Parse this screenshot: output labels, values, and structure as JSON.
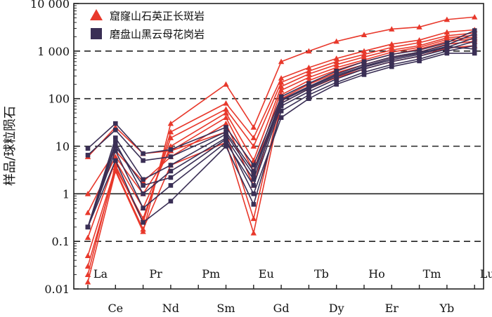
{
  "chart_data": {
    "type": "line",
    "ylabel": "样品/球粒陨石",
    "y_scale": "log",
    "ylim": [
      0.01,
      10000
    ],
    "y_ticks": [
      {
        "value": 0.01,
        "label": "0.01"
      },
      {
        "value": 0.1,
        "label": "0.1"
      },
      {
        "value": 1,
        "label": "1"
      },
      {
        "value": 10,
        "label": "10"
      },
      {
        "value": 100,
        "label": "100"
      },
      {
        "value": 1000,
        "label": "1 000"
      },
      {
        "value": 10000,
        "label": "10 000"
      }
    ],
    "dashed_gridlines": [
      0.1,
      10,
      100,
      1000
    ],
    "solid_gridlines": [
      1
    ],
    "categories": [
      "La",
      "Ce",
      "Pr",
      "Nd",
      "Pm",
      "Sm",
      "Eu",
      "Gd",
      "Tb",
      "Dy",
      "Ho",
      "Er",
      "Tm",
      "Yb",
      "Lu"
    ],
    "legend_position": "top-left",
    "legend": [
      {
        "label": "窟窿山石英正长斑岩",
        "marker": "triangle",
        "color": "#e8382b"
      },
      {
        "label": "磨盘山黑云母花岗岩",
        "marker": "square",
        "color": "#3a2f55"
      }
    ],
    "series_groups": [
      {
        "group": "窟窿山石英正长斑岩",
        "color": "#e8382b",
        "marker": "triangle",
        "lines": [
          [
            0.014,
            3.0,
            0.16,
            30,
            null,
            200,
            25,
            600,
            1000,
            1600,
            2200,
            2900,
            3200,
            4600,
            5200
          ],
          [
            0.02,
            4.0,
            0.25,
            20,
            null,
            80,
            15,
            270,
            450,
            700,
            1000,
            1400,
            1700,
            2500,
            2800
          ],
          [
            0.05,
            3.5,
            0.3,
            15,
            null,
            60,
            10,
            220,
            380,
            600,
            850,
            1200,
            1500,
            2100,
            2400
          ],
          [
            0.12,
            5.0,
            0.5,
            10,
            null,
            50,
            5,
            180,
            330,
            520,
            750,
            1050,
            1300,
            1900,
            2150
          ],
          [
            0.4,
            6.0,
            1.0,
            8,
            null,
            40,
            3,
            150,
            280,
            450,
            650,
            950,
            1200,
            1750,
            1950
          ],
          [
            1.0,
            8.0,
            1.8,
            6,
            null,
            30,
            1.5,
            120,
            240,
            400,
            600,
            850,
            1100,
            1600,
            1800
          ],
          [
            6.0,
            25,
            7.0,
            8,
            null,
            20,
            0.3,
            100,
            200,
            350,
            520,
            750,
            950,
            1400,
            1600
          ],
          [
            0.03,
            3.2,
            0.18,
            4,
            null,
            12,
            0.15,
            80,
            160,
            280,
            420,
            600,
            780,
            1150,
            1300
          ]
        ]
      },
      {
        "group": "磨盘山黑云母花岗岩",
        "color": "#3a2f55",
        "marker": "square",
        "lines": [
          [
            9.0,
            30,
            7.0,
            8.5,
            null,
            25,
            4.0,
            110,
            210,
            380,
            600,
            850,
            1050,
            1500,
            2700
          ],
          [
            6.5,
            22,
            5.0,
            6.0,
            null,
            20,
            3.0,
            95,
            180,
            330,
            520,
            750,
            950,
            1350,
            2300
          ],
          [
            0.2,
            12,
            1.0,
            3.0,
            null,
            15,
            2.0,
            80,
            160,
            290,
            460,
            650,
            850,
            1200,
            1900
          ],
          [
            0.2,
            8,
            0.5,
            1.5,
            null,
            12,
            1.5,
            70,
            140,
            260,
            420,
            600,
            780,
            1100,
            1600
          ],
          [
            0.2,
            5,
            0.25,
            0.7,
            null,
            10,
            0.6,
            55,
            120,
            220,
            360,
            520,
            680,
            1000,
            1300
          ],
          [
            0.2,
            15,
            2.0,
            4.0,
            null,
            18,
            2.5,
            90,
            170,
            310,
            480,
            700,
            900,
            1250,
            1100
          ],
          [
            0.2,
            10,
            1.5,
            2.2,
            null,
            14,
            1.0,
            40,
            100,
            200,
            320,
            470,
            620,
            900,
            900
          ]
        ]
      }
    ]
  }
}
